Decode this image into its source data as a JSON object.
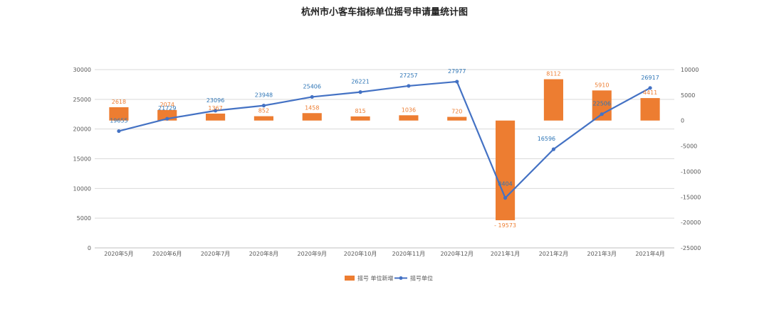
{
  "chart_data": {
    "type": "bar",
    "title": "杭州市小客车指标单位摇号申请量统计图",
    "categories": [
      "2020年5月",
      "2020年6月",
      "2020年7月",
      "2020年8月",
      "2020年9月",
      "2020年10月",
      "2020年11月",
      "2020年12月",
      "2021年1月",
      "2021年2月",
      "2021年3月",
      "2021年4月"
    ],
    "series": [
      {
        "name": "摇号 单位新增",
        "type": "bar",
        "axis": "right",
        "color": "#ed7d31",
        "values": [
          2618,
          2074,
          1367,
          852,
          1458,
          815,
          1036,
          720,
          -19573,
          8112,
          5910,
          4411
        ],
        "labels": [
          "2618",
          "2074",
          "1367",
          "852",
          "1458",
          "815",
          "1036",
          "720",
          "- 19573",
          "8112",
          "5910",
          "4411"
        ]
      },
      {
        "name": "摇号单位",
        "type": "line",
        "axis": "left",
        "color": "#4472c4",
        "values": [
          19655,
          21729,
          23096,
          23948,
          25406,
          26221,
          27257,
          27977,
          8404,
          16596,
          22506,
          26917
        ],
        "labels": [
          "19655",
          "21729",
          "23096",
          "23948",
          "25406",
          "26221",
          "27257",
          "27977",
          "8404",
          "16596",
          "22506",
          "26917"
        ]
      }
    ],
    "y_left": {
      "min": 0,
      "max": 30000,
      "ticks": [
        "0",
        "5000",
        "10000",
        "15000",
        "20000",
        "25000",
        "30000"
      ]
    },
    "y_right": {
      "min": -25000,
      "max": 10000,
      "ticks": [
        "-25000",
        "-20000",
        "-15000",
        "-10000",
        "-5000",
        "0",
        "5000",
        "10000"
      ]
    },
    "grid": true,
    "legend_position": "bottom"
  }
}
